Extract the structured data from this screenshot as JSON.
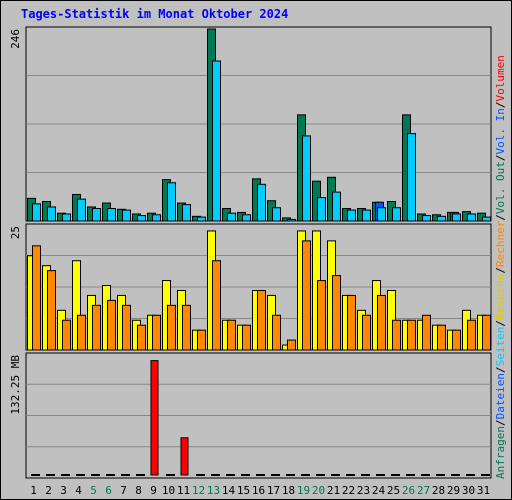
{
  "title": "Tages-Statistik im Monat Oktober 2024",
  "colors": {
    "anfragen": "#007755",
    "dateien": "#00ccff",
    "seiten": "#0055ff",
    "besuche": "#ffff00",
    "rechner": "#ff8800",
    "volumen": "#ff0000",
    "panel_bg": "#c0c0c0",
    "weekend": "#007755",
    "weekday": "#000000"
  },
  "right_labels": {
    "top": [
      {
        "text": "Anfragen",
        "color": "#007755"
      },
      {
        "text": "/",
        "color": "#000000"
      },
      {
        "text": "Dateien",
        "color": "#0055ff"
      },
      {
        "text": "/",
        "color": "#000000"
      },
      {
        "text": "Seiten",
        "color": "#00ccff"
      },
      {
        "text": "/",
        "color": "#000000"
      },
      {
        "text": "Besuche",
        "color": "#ddcc00"
      },
      {
        "text": "/",
        "color": "#000000"
      },
      {
        "text": "Rechner",
        "color": "#ff8800"
      },
      {
        "text": "/",
        "color": "#000000"
      },
      {
        "text": "Vol. Out",
        "color": "#007755"
      },
      {
        "text": "/",
        "color": "#000000"
      },
      {
        "text": "Vol. In",
        "color": "#0055ff"
      },
      {
        "text": "/",
        "color": "#000000"
      },
      {
        "text": "Volumen",
        "color": "#ff0000"
      }
    ]
  },
  "chart_data": [
    {
      "type": "bar",
      "panel": "hits",
      "ymax_label": "246",
      "ylim": [
        0,
        246
      ],
      "categories": [
        "1",
        "2",
        "3",
        "4",
        "5",
        "6",
        "7",
        "8",
        "9",
        "10",
        "11",
        "12",
        "13",
        "14",
        "15",
        "16",
        "17",
        "18",
        "19",
        "20",
        "21",
        "22",
        "23",
        "24",
        "25",
        "26",
        "27",
        "28",
        "29",
        "30",
        "31"
      ],
      "weekend_days": [
        "5",
        "6",
        "12",
        "13",
        "19",
        "20",
        "26",
        "27"
      ],
      "series": [
        {
          "name": "Anfragen",
          "color": "#007755",
          "values": [
            29,
            25,
            10,
            34,
            18,
            23,
            15,
            9,
            10,
            53,
            23,
            6,
            246,
            16,
            11,
            54,
            26,
            4,
            136,
            51,
            56,
            16,
            16,
            24,
            25,
            136,
            9,
            8,
            11,
            12,
            10
          ]
        },
        {
          "name": "Dateien",
          "color": "#00ccff",
          "values": [
            22,
            18,
            9,
            28,
            16,
            16,
            14,
            7,
            8,
            49,
            21,
            5,
            205,
            10,
            8,
            47,
            17,
            2,
            109,
            30,
            37,
            14,
            14,
            17,
            17,
            112,
            7,
            6,
            9,
            9,
            5
          ]
        },
        {
          "name": "Seiten",
          "color": "#0055ff",
          "values": [
            0,
            0,
            0,
            0,
            0,
            0,
            0,
            0,
            0,
            0,
            0,
            0,
            0,
            0,
            0,
            0,
            0,
            0,
            0,
            0,
            0,
            0,
            0,
            24,
            0,
            0,
            0,
            0,
            11,
            0,
            0
          ]
        }
      ]
    },
    {
      "type": "bar",
      "panel": "visits",
      "ymax_label": "25",
      "ylim": [
        0,
        25
      ],
      "categories": [
        "1",
        "2",
        "3",
        "4",
        "5",
        "6",
        "7",
        "8",
        "9",
        "10",
        "11",
        "12",
        "13",
        "14",
        "15",
        "16",
        "17",
        "18",
        "19",
        "20",
        "21",
        "22",
        "23",
        "24",
        "25",
        "26",
        "27",
        "28",
        "29",
        "30",
        "31"
      ],
      "series": [
        {
          "name": "Besuche",
          "color": "#ffff00",
          "values": [
            19,
            17,
            8,
            18,
            11,
            13,
            11,
            6,
            7,
            14,
            12,
            4,
            24,
            6,
            5,
            12,
            11,
            1,
            24,
            24,
            22,
            11,
            8,
            14,
            12,
            6,
            6,
            5,
            4,
            8,
            7
          ]
        },
        {
          "name": "Rechner",
          "color": "#ff8800",
          "values": [
            21,
            16,
            6,
            7,
            9,
            10,
            9,
            5,
            7,
            9,
            9,
            4,
            18,
            6,
            5,
            12,
            7,
            2,
            22,
            14,
            15,
            11,
            7,
            11,
            6,
            6,
            7,
            5,
            4,
            6,
            7
          ]
        }
      ]
    },
    {
      "type": "bar",
      "panel": "volume",
      "ymax_label": "132.25 MB",
      "ylim": [
        0,
        264.5
      ],
      "categories": [
        "1",
        "2",
        "3",
        "4",
        "5",
        "6",
        "7",
        "8",
        "9",
        "10",
        "11",
        "12",
        "13",
        "14",
        "15",
        "16",
        "17",
        "18",
        "19",
        "20",
        "21",
        "22",
        "23",
        "24",
        "25",
        "26",
        "27",
        "28",
        "29",
        "30",
        "31"
      ],
      "series": [
        {
          "name": "Volumen",
          "color": "#ff0000",
          "values": [
            0,
            0,
            0,
            0,
            0,
            0,
            0,
            0,
            246,
            0,
            80,
            0,
            0,
            0,
            0,
            0,
            0,
            0,
            0,
            0,
            0,
            0,
            0,
            0,
            0,
            0,
            0,
            0,
            0,
            0,
            0
          ]
        }
      ]
    }
  ]
}
